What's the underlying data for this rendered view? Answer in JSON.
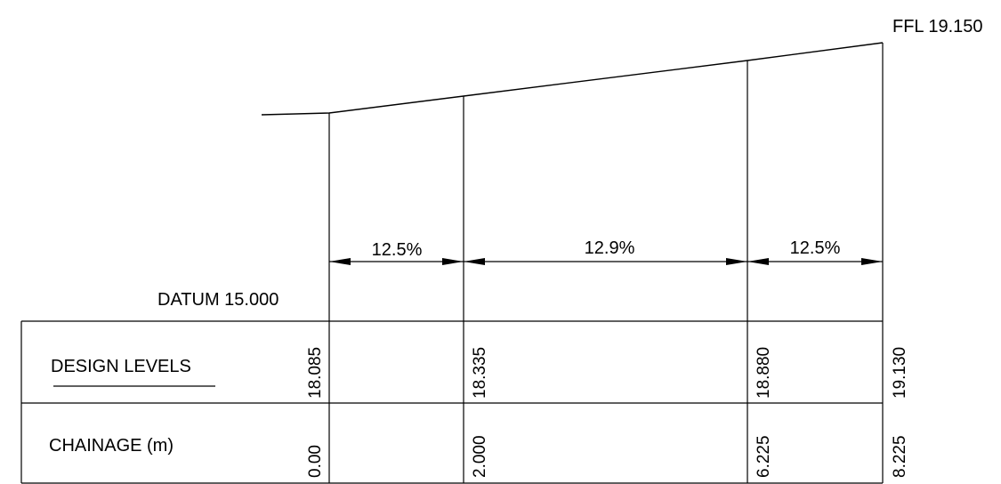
{
  "drawing": {
    "ffl_label": "FFL 19.150",
    "datum_label": "DATUM 15.000",
    "gradients": [
      "12.5%",
      "12.9%",
      "12.5%"
    ],
    "rows": {
      "design_levels": {
        "label": "DESIGN LEVELS",
        "values": [
          "18.085",
          "18.335",
          "18.880",
          "19.130"
        ]
      },
      "chainage": {
        "label": "CHAINAGE (m)",
        "values": [
          "0.00",
          "2.000",
          "6.225",
          "8.225"
        ]
      }
    },
    "colors": {
      "line": "#000000",
      "background": "#ffffff"
    }
  }
}
